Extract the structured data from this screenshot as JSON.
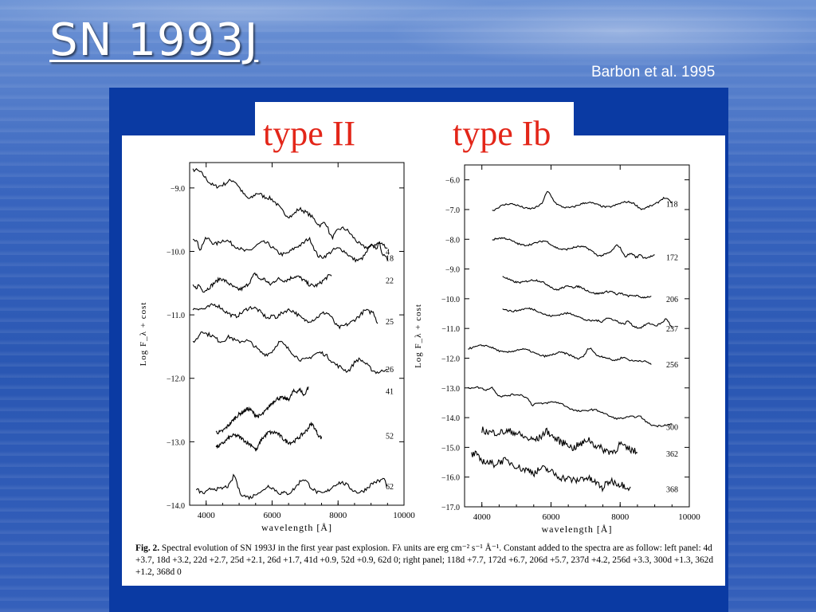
{
  "slide": {
    "title": "SN 1993J",
    "citation": "Barbon et al. 1995",
    "label_left": "type II",
    "label_right": "type Ib"
  },
  "caption": {
    "fig": "Fig. 2.",
    "text": "Spectral evolution of SN 1993J in the first year past explosion. Fλ units are erg cm⁻² s⁻¹ Å⁻¹. Constant added to the spectra are as follow: left panel: 4d +3.7, 18d +3.2, 22d +2.7, 25d +2.1, 26d +1.7, 41d +0.9, 52d +0.9, 62d 0; right panel; 118d +7.7, 172d +6.7, 206d +5.7, 237d +4.2, 256d +3.3, 300d +1.3, 362d +1.2, 368d 0"
  },
  "chart_data": [
    {
      "type": "line",
      "panel": "left",
      "xlabel": "wavelength [Å]",
      "ylabel": "Log F_λ + cost",
      "xlim": [
        3500,
        10000
      ],
      "ylim": [
        -14.0,
        -8.6
      ],
      "x_ticks": [
        "4000",
        "6000",
        "8000",
        "10000"
      ],
      "y_ticks": [
        "−9.0",
        "−10.0",
        "−11.0",
        "−12.0",
        "−13.0",
        "−14.0"
      ],
      "series": [
        {
          "name": "4",
          "x_start": 3600,
          "x_end": 9500,
          "y_start": -8.75,
          "y_end": -10.0
        },
        {
          "name": "18",
          "x_start": 3600,
          "x_end": 9500,
          "y_start": -9.85,
          "y_end": -10.1
        },
        {
          "name": "22",
          "x_start": 3600,
          "x_end": 7800,
          "y_start": -10.55,
          "y_end": -10.45
        },
        {
          "name": "25",
          "x_start": 3600,
          "x_end": 9200,
          "y_start": -10.9,
          "y_end": -11.1
        },
        {
          "name": "26",
          "x_start": 3600,
          "x_end": 9500,
          "y_start": -11.35,
          "y_end": -11.85
        },
        {
          "name": "41",
          "x_start": 4300,
          "x_end": 7100,
          "y_start": -12.8,
          "y_end": -12.2
        },
        {
          "name": "52",
          "x_start": 4300,
          "x_end": 7500,
          "y_start": -13.0,
          "y_end": -12.9
        },
        {
          "name": "62",
          "x_start": 3700,
          "x_end": 9500,
          "y_start": -13.8,
          "y_end": -13.7
        }
      ]
    },
    {
      "type": "line",
      "panel": "right",
      "xlabel": "wavelength [Å]",
      "ylabel": "Log F_λ + cost",
      "xlim": [
        3500,
        10000
      ],
      "ylim": [
        -17.0,
        -5.5
      ],
      "x_ticks": [
        "4000",
        "6000",
        "8000",
        "10000"
      ],
      "y_ticks": [
        "−6.0",
        "−7.0",
        "−8.0",
        "−9.0",
        "−10.0",
        "−11.0",
        "−12.0",
        "−13.0",
        "−14.0",
        "−15.0",
        "−16.0",
        "−17.0"
      ],
      "series": [
        {
          "name": "118",
          "x_start": 4300,
          "x_end": 9500,
          "y_start": -6.9,
          "y_end": -6.8
        },
        {
          "name": "172",
          "x_start": 4300,
          "x_end": 9000,
          "y_start": -8.0,
          "y_end": -8.6
        },
        {
          "name": "206",
          "x_start": 4600,
          "x_end": 8900,
          "y_start": -9.3,
          "y_end": -10.0
        },
        {
          "name": "237",
          "x_start": 4600,
          "x_end": 9500,
          "y_start": -10.3,
          "y_end": -11.0
        },
        {
          "name": "256",
          "x_start": 3600,
          "x_end": 8900,
          "y_start": -11.6,
          "y_end": -12.2
        },
        {
          "name": "300",
          "x_start": 3600,
          "x_end": 9500,
          "y_start": -13.0,
          "y_end": -14.3
        },
        {
          "name": "362",
          "x_start": 4000,
          "x_end": 8500,
          "y_start": -14.4,
          "y_end": -15.2
        },
        {
          "name": "368",
          "x_start": 3700,
          "x_end": 8300,
          "y_start": -15.3,
          "y_end": -16.4
        }
      ]
    }
  ]
}
